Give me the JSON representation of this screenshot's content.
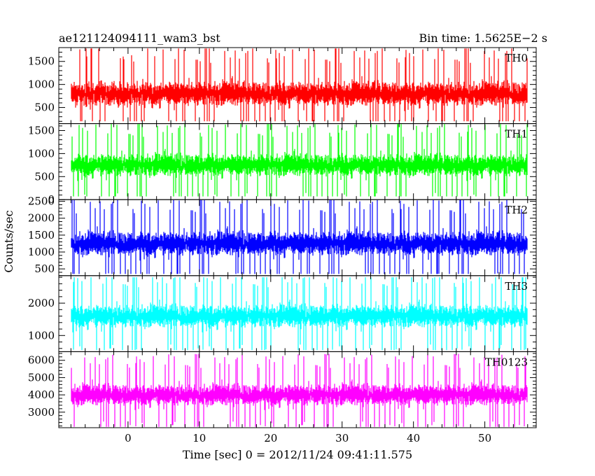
{
  "header": {
    "left": "ae121124094111_wam3_bst",
    "right": "Bin time: 1.5625E−2 s"
  },
  "chart_data": {
    "type": "line",
    "ylabel": "Counts/sec",
    "xlabel": "Time [sec] 0 = 2012/11/24 09:41:11.575",
    "x_range": [
      -9.7,
      57.2
    ],
    "data_x_range": [
      -8.0,
      56.0
    ],
    "x_ticks": [
      0,
      10,
      20,
      30,
      40,
      50
    ],
    "x_minor_step": 2,
    "bin_time": 0.015625,
    "panels": [
      {
        "name": "TH0",
        "color": "#ff0000",
        "ylim": [
          150,
          1800
        ],
        "y_ticks": [
          500,
          1000,
          1500
        ],
        "y_minor_step": 100,
        "mean": 800,
        "spread": 600,
        "min": 200,
        "max": 1780
      },
      {
        "name": "TH1",
        "color": "#00ff00",
        "ylim": [
          0,
          1650
        ],
        "y_ticks": [
          0,
          500,
          1000,
          1500
        ],
        "y_minor_step": 100,
        "mean": 750,
        "spread": 550,
        "min": 70,
        "max": 1640
      },
      {
        "name": "TH2",
        "color": "#0000ff",
        "ylim": [
          300,
          2550
        ],
        "y_ticks": [
          500,
          1000,
          1500,
          2000,
          2500
        ],
        "y_minor_step": 100,
        "mean": 1250,
        "spread": 800,
        "min": 350,
        "max": 2540
      },
      {
        "name": "TH3",
        "color": "#00ffff",
        "ylim": [
          500,
          2850
        ],
        "y_ticks": [
          1000,
          2000
        ],
        "y_minor_step": 200,
        "mean": 1600,
        "spread": 800,
        "min": 550,
        "max": 2800
      },
      {
        "name": "TH0123",
        "color": "#ff00ff",
        "ylim": [
          2100,
          6500
        ],
        "y_ticks": [
          3000,
          4000,
          5000,
          6000
        ],
        "y_minor_step": 200,
        "mean": 4000,
        "spread": 1400,
        "min": 2150,
        "max": 6450
      }
    ]
  }
}
